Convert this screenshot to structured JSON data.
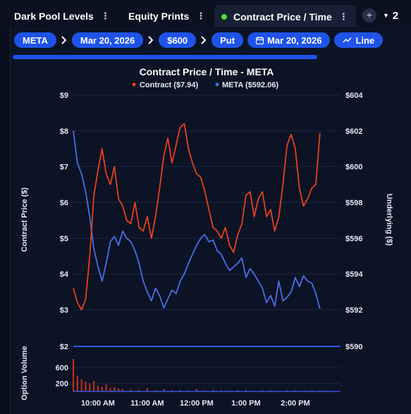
{
  "tabs": [
    {
      "label": "Dark Pool Levels",
      "active": false
    },
    {
      "label": "Equity Prints",
      "active": false
    },
    {
      "label": "Contract Price / Time",
      "active": true
    }
  ],
  "add_tab_icon": "plus-icon",
  "tab_count": "2",
  "breadcrumb": {
    "items": [
      "META",
      "Mar 20, 2026",
      "$600",
      "Put"
    ],
    "expiry_label": "Mar 20, 2026",
    "chart_type_label": "Line"
  },
  "colors": {
    "accent": "#1f53e8",
    "contract": "#e8401c",
    "underlying": "#4b6ee8",
    "active_dot": "#4ade3b"
  },
  "chart_data": {
    "type": "line",
    "title": "Contract Price / Time - META",
    "legend": [
      {
        "name": "Contract ($7.94)",
        "color": "#e8401c"
      },
      {
        "name": "META ($592.06)",
        "color": "#4b6ee8"
      }
    ],
    "y_left_label": "Contract Price ($)",
    "y_right_label": "Underlying ($)",
    "y_left_ticks": [
      "$9",
      "$8",
      "$7",
      "$6",
      "$5",
      "$4",
      "$3"
    ],
    "y_right_ticks": [
      "$604",
      "$602",
      "$600",
      "$598",
      "$596",
      "$594",
      "$592"
    ],
    "y_left_range": [
      3,
      9
    ],
    "y_right_range": [
      592,
      604
    ],
    "volume_label": "Option Volume",
    "volume_ticks": [
      "600",
      "200"
    ],
    "volume_left_top": "$2",
    "volume_right_top": "$590",
    "x_ticks": [
      "10:00 AM",
      "11:00 AM",
      "12:00 PM",
      "1:00 PM",
      "2:00 PM"
    ],
    "contract_series": {
      "name": "Contract",
      "color": "#e8401c",
      "x": [
        "09:30",
        "09:35",
        "09:40",
        "09:45",
        "09:50",
        "09:55",
        "10:00",
        "10:05",
        "10:10",
        "10:15",
        "10:20",
        "10:25",
        "10:30",
        "10:35",
        "10:40",
        "10:45",
        "10:50",
        "10:55",
        "11:00",
        "11:05",
        "11:10",
        "11:15",
        "11:20",
        "11:25",
        "11:30",
        "11:35",
        "11:40",
        "11:45",
        "11:50",
        "11:55",
        "12:00",
        "12:05",
        "12:10",
        "12:15",
        "12:20",
        "12:25",
        "12:30",
        "12:35",
        "12:40",
        "12:45",
        "12:50",
        "12:55",
        "13:00",
        "13:05",
        "13:10",
        "13:15",
        "13:20",
        "13:25",
        "13:30",
        "13:35",
        "13:40",
        "13:45",
        "13:50",
        "13:55",
        "14:00",
        "14:05",
        "14:10",
        "14:15",
        "14:20",
        "14:25",
        "14:30"
      ],
      "y": [
        3.6,
        3.2,
        3.0,
        3.3,
        4.5,
        6.2,
        6.9,
        7.5,
        6.8,
        6.5,
        7.0,
        6.1,
        5.9,
        5.5,
        5.4,
        6.0,
        5.3,
        5.2,
        5.6,
        5.0,
        5.6,
        6.4,
        7.3,
        7.8,
        7.1,
        7.6,
        8.1,
        8.2,
        7.5,
        7.1,
        6.8,
        6.7,
        6.3,
        5.8,
        5.3,
        5.2,
        5.0,
        5.3,
        4.8,
        4.6,
        5.1,
        5.4,
        6.2,
        6.3,
        5.6,
        6.1,
        6.3,
        5.6,
        5.8,
        5.2,
        5.6,
        6.5,
        7.6,
        7.9,
        7.5,
        6.4,
        5.9,
        6.1,
        6.4,
        6.5,
        7.94
      ]
    },
    "underlying_series": {
      "name": "META",
      "color": "#4b6ee8",
      "x": [
        "09:30",
        "09:35",
        "09:40",
        "09:45",
        "09:50",
        "09:55",
        "10:00",
        "10:05",
        "10:10",
        "10:15",
        "10:20",
        "10:25",
        "10:30",
        "10:35",
        "10:40",
        "10:45",
        "10:50",
        "10:55",
        "11:00",
        "11:05",
        "11:10",
        "11:15",
        "11:20",
        "11:25",
        "11:30",
        "11:35",
        "11:40",
        "11:45",
        "11:50",
        "11:55",
        "12:00",
        "12:05",
        "12:10",
        "12:15",
        "12:20",
        "12:25",
        "12:30",
        "12:35",
        "12:40",
        "12:45",
        "12:50",
        "12:55",
        "13:00",
        "13:05",
        "13:10",
        "13:15",
        "13:20",
        "13:25",
        "13:30",
        "13:35",
        "13:40",
        "13:45",
        "13:50",
        "13:55",
        "14:00",
        "14:05",
        "14:10",
        "14:15",
        "14:20",
        "14:25",
        "14:30"
      ],
      "y": [
        602.0,
        600.2,
        599.6,
        598.6,
        597.2,
        595.4,
        594.4,
        593.6,
        594.6,
        595.8,
        596.1,
        595.6,
        596.4,
        596.0,
        595.8,
        595.3,
        594.6,
        593.6,
        593.0,
        592.5,
        593.2,
        592.8,
        592.1,
        592.6,
        593.1,
        592.9,
        593.6,
        594.0,
        594.6,
        595.1,
        595.6,
        596.0,
        596.2,
        595.8,
        595.9,
        595.3,
        595.1,
        594.6,
        594.2,
        594.4,
        594.6,
        594.9,
        593.8,
        594.3,
        594.0,
        593.6,
        593.2,
        592.4,
        592.8,
        592.2,
        593.6,
        592.5,
        592.7,
        593.0,
        593.8,
        593.3,
        593.9,
        593.6,
        593.5,
        592.9,
        592.06
      ]
    },
    "volume": {
      "x": [
        "09:30",
        "09:35",
        "09:40",
        "09:45",
        "09:50",
        "09:55",
        "10:00",
        "10:05",
        "10:10",
        "10:15",
        "10:20",
        "10:25",
        "10:30",
        "10:40",
        "10:50",
        "11:00",
        "11:10",
        "11:20",
        "11:30",
        "11:40",
        "11:50",
        "12:00",
        "12:10",
        "12:20",
        "12:30",
        "12:40",
        "12:50",
        "13:00",
        "13:10",
        "13:20",
        "13:30",
        "13:40",
        "13:50",
        "14:00",
        "14:10",
        "14:20",
        "14:30"
      ],
      "values": [
        820,
        400,
        300,
        250,
        200,
        260,
        150,
        120,
        180,
        90,
        110,
        70,
        60,
        50,
        45,
        80,
        40,
        55,
        35,
        40,
        30,
        60,
        25,
        45,
        30,
        25,
        35,
        40,
        20,
        30,
        25,
        20,
        30,
        25,
        20,
        25,
        30
      ]
    }
  }
}
